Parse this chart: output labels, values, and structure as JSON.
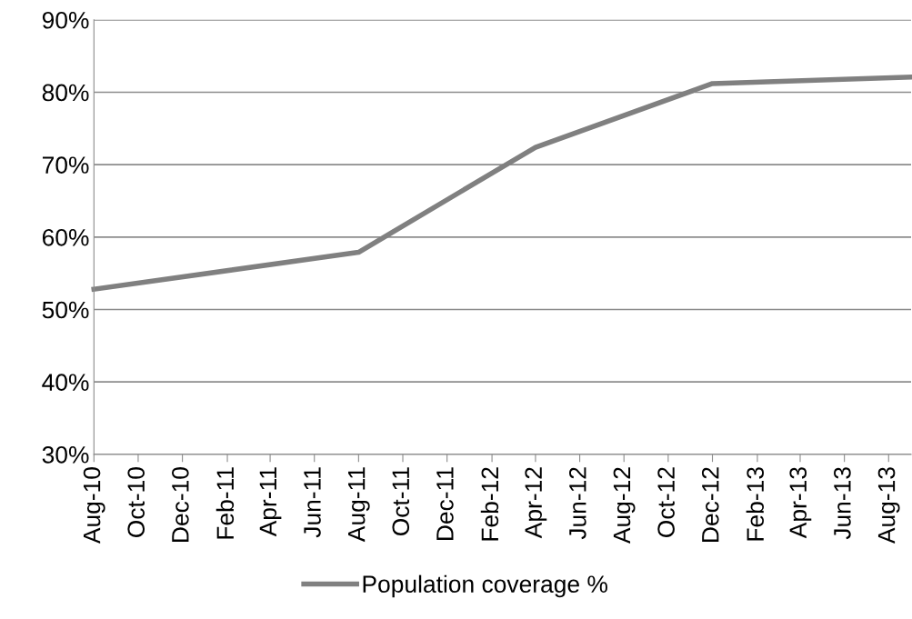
{
  "chart_data": {
    "type": "line",
    "x": [
      "2010-08",
      "2011-08",
      "2012-04",
      "2012-12",
      "2013-09"
    ],
    "series": [
      {
        "name": "Population coverage %",
        "color": "#808080",
        "values": [
          52.8,
          57.9,
          72.4,
          81.2,
          82.1
        ]
      }
    ],
    "xlim": [
      "2010-08",
      "2013-09"
    ],
    "xticks": [
      {
        "value": "2010-08",
        "label": "Aug-10"
      },
      {
        "value": "2010-10",
        "label": "Oct-10"
      },
      {
        "value": "2010-12",
        "label": "Dec-10"
      },
      {
        "value": "2011-02",
        "label": "Feb-11"
      },
      {
        "value": "2011-04",
        "label": "Apr-11"
      },
      {
        "value": "2011-06",
        "label": "Jun-11"
      },
      {
        "value": "2011-08",
        "label": "Aug-11"
      },
      {
        "value": "2011-10",
        "label": "Oct-11"
      },
      {
        "value": "2011-12",
        "label": "Dec-11"
      },
      {
        "value": "2012-02",
        "label": "Feb-12"
      },
      {
        "value": "2012-04",
        "label": "Apr-12"
      },
      {
        "value": "2012-06",
        "label": "Jun-12"
      },
      {
        "value": "2012-08",
        "label": "Aug-12"
      },
      {
        "value": "2012-10",
        "label": "Oct-12"
      },
      {
        "value": "2012-12",
        "label": "Dec-12"
      },
      {
        "value": "2013-02",
        "label": "Feb-13"
      },
      {
        "value": "2013-04",
        "label": "Apr-13"
      },
      {
        "value": "2013-06",
        "label": "Jun-13"
      },
      {
        "value": "2013-08",
        "label": "Aug-13"
      }
    ],
    "ylim": [
      30,
      90
    ],
    "yticks": [
      {
        "value": 30,
        "label": "30%"
      },
      {
        "value": 40,
        "label": "40%"
      },
      {
        "value": 50,
        "label": "50%"
      },
      {
        "value": 60,
        "label": "60%"
      },
      {
        "value": 70,
        "label": "70%"
      },
      {
        "value": 80,
        "label": "80%"
      },
      {
        "value": 90,
        "label": "90%"
      }
    ],
    "grid": "y",
    "legend": "bottom",
    "marker": "none",
    "line_style": "solid"
  }
}
